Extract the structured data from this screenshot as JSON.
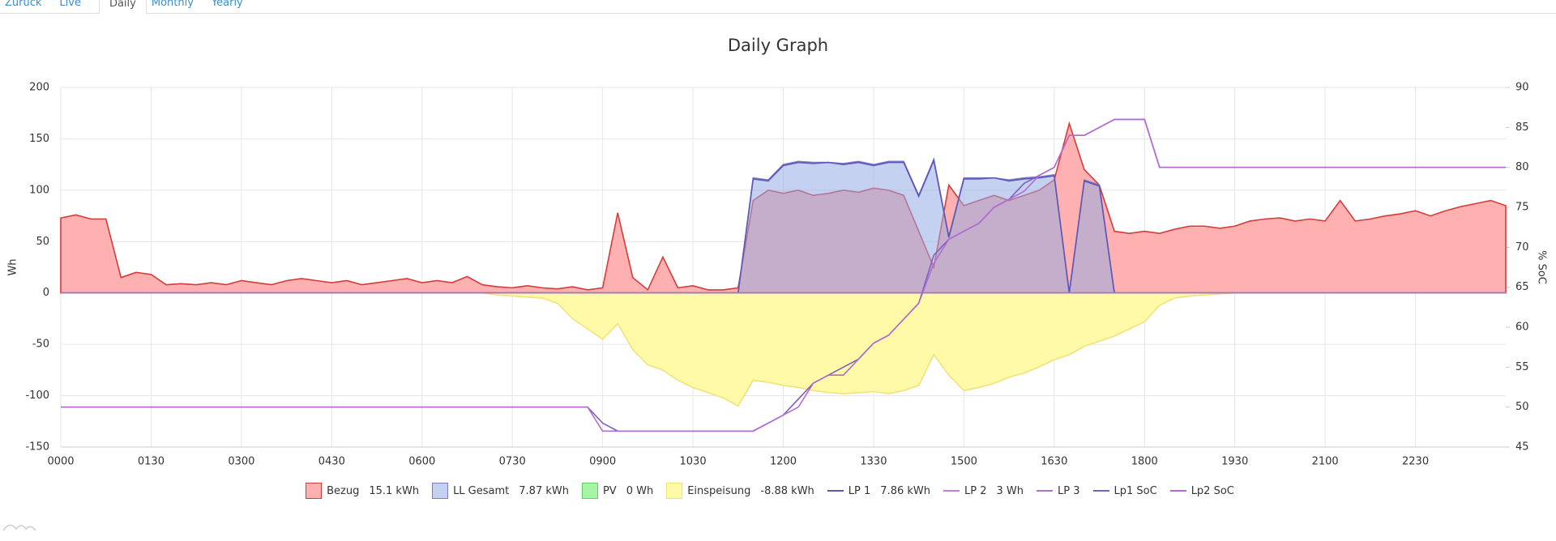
{
  "tabs": [
    "Zurück",
    "Live",
    "Daily",
    "Monthly",
    "Yearly"
  ],
  "chart_data": {
    "type": "line",
    "title": "Daily Graph",
    "y_label": "Wh",
    "y2_label": "% SoC",
    "xlim": [
      0,
      1440
    ],
    "xticks": [
      {
        "value": 0,
        "label": "0000"
      },
      {
        "value": 90,
        "label": "0130"
      },
      {
        "value": 180,
        "label": "0300"
      },
      {
        "value": 270,
        "label": "0430"
      },
      {
        "value": 360,
        "label": "0600"
      },
      {
        "value": 450,
        "label": "0730"
      },
      {
        "value": 540,
        "label": "0900"
      },
      {
        "value": 630,
        "label": "1030"
      },
      {
        "value": 720,
        "label": "1200"
      },
      {
        "value": 810,
        "label": "1330"
      },
      {
        "value": 900,
        "label": "1500"
      },
      {
        "value": 990,
        "label": "1630"
      },
      {
        "value": 1080,
        "label": "1800"
      },
      {
        "value": 1170,
        "label": "1930"
      },
      {
        "value": 1260,
        "label": "2100"
      },
      {
        "value": 1350,
        "label": "2230"
      }
    ],
    "ylim": [
      -150,
      200
    ],
    "yticks": [
      -150,
      -100,
      -50,
      0,
      50,
      100,
      150,
      200
    ],
    "y2lim": [
      45,
      90
    ],
    "y2ticks": [
      45,
      50,
      55,
      60,
      65,
      70,
      75,
      80,
      85,
      90
    ],
    "grid": true,
    "x": [
      0,
      15,
      30,
      45,
      60,
      75,
      90,
      105,
      120,
      135,
      150,
      165,
      180,
      195,
      210,
      225,
      240,
      255,
      270,
      285,
      300,
      315,
      330,
      345,
      360,
      375,
      390,
      405,
      420,
      435,
      450,
      465,
      480,
      495,
      510,
      525,
      540,
      555,
      570,
      585,
      600,
      615,
      630,
      645,
      660,
      675,
      690,
      705,
      720,
      735,
      750,
      765,
      780,
      795,
      810,
      825,
      840,
      855,
      870,
      885,
      900,
      915,
      930,
      945,
      960,
      975,
      990,
      1005,
      1020,
      1035,
      1050,
      1065,
      1080,
      1095,
      1110,
      1125,
      1140,
      1155,
      1170,
      1185,
      1200,
      1215,
      1230,
      1245,
      1260,
      1275,
      1290,
      1305,
      1320,
      1335,
      1350,
      1365,
      1380,
      1395,
      1410,
      1425,
      1440
    ],
    "series": [
      {
        "name": "Bezug",
        "total": "15.1 kWh",
        "kind": "area",
        "color": "#d63b3b",
        "fill": "#ffb0b0",
        "values": [
          73,
          76,
          72,
          72,
          15,
          20,
          18,
          8,
          9,
          8,
          10,
          8,
          12,
          10,
          8,
          12,
          14,
          12,
          10,
          12,
          8,
          10,
          12,
          14,
          10,
          12,
          10,
          16,
          8,
          6,
          5,
          7,
          5,
          4,
          6,
          3,
          5,
          78,
          15,
          3,
          35,
          5,
          7,
          3,
          3,
          5,
          90,
          100,
          97,
          100,
          95,
          97,
          100,
          98,
          102,
          100,
          95,
          60,
          25,
          105,
          85,
          90,
          95,
          90,
          95,
          100,
          110,
          165,
          120,
          105,
          60,
          58,
          60,
          58,
          62,
          65,
          65,
          63,
          65,
          70,
          72,
          73,
          70,
          72,
          70,
          90,
          70,
          72,
          75,
          77,
          80,
          75,
          80,
          84,
          87,
          90,
          85
        ]
      },
      {
        "name": "LL Gesamt",
        "total": "7.87 kWh",
        "kind": "area",
        "color": "#7f7ac8",
        "fill": "rgba(150,172,228,0.55)",
        "values": [
          0,
          0,
          0,
          0,
          0,
          0,
          0,
          0,
          0,
          0,
          0,
          0,
          0,
          0,
          0,
          0,
          0,
          0,
          0,
          0,
          0,
          0,
          0,
          0,
          0,
          0,
          0,
          0,
          0,
          0,
          0,
          0,
          0,
          0,
          0,
          0,
          0,
          0,
          0,
          0,
          0,
          0,
          0,
          0,
          0,
          0,
          112,
          110,
          125,
          128,
          127,
          127,
          126,
          128,
          125,
          128,
          128,
          95,
          130,
          55,
          112,
          112,
          112,
          110,
          112,
          113,
          115,
          0,
          110,
          105,
          0,
          0,
          0,
          0,
          0,
          0,
          0,
          0,
          0,
          0,
          0,
          0,
          0,
          0,
          0,
          0,
          0,
          0,
          0,
          0,
          0,
          0,
          0,
          0,
          0,
          0,
          0
        ]
      },
      {
        "name": "PV",
        "total": "0 Wh",
        "kind": "area",
        "color": "#5fcf5f",
        "fill": "#a6f5a6",
        "values": [
          0,
          0,
          0,
          0,
          0,
          0,
          0,
          0,
          0,
          0,
          0,
          0,
          0,
          0,
          0,
          0,
          0,
          0,
          0,
          0,
          0,
          0,
          0,
          0,
          0,
          0,
          0,
          0,
          0,
          0,
          0,
          0,
          0,
          0,
          0,
          0,
          0,
          0,
          0,
          0,
          0,
          0,
          0,
          0,
          0,
          0,
          0,
          0,
          0,
          0,
          0,
          0,
          0,
          0,
          0,
          0,
          0,
          0,
          0,
          0,
          0,
          0,
          0,
          0,
          0,
          0,
          0,
          0,
          0,
          0,
          0,
          0,
          0,
          0,
          0,
          0,
          0,
          0,
          0,
          0,
          0,
          0,
          0,
          0,
          0,
          0,
          0,
          0,
          0,
          0,
          0,
          0,
          0,
          0,
          0,
          0,
          0
        ]
      },
      {
        "name": "Einspeisung",
        "total": "-8.88 kWh",
        "kind": "area",
        "color": "#f3e27a",
        "fill": "#fffaa8",
        "values": [
          0,
          0,
          0,
          0,
          0,
          0,
          0,
          0,
          0,
          0,
          0,
          0,
          0,
          0,
          0,
          0,
          0,
          0,
          0,
          0,
          0,
          0,
          0,
          0,
          0,
          0,
          0,
          0,
          0,
          -2,
          -3,
          -4,
          -5,
          -10,
          -25,
          -35,
          -45,
          -30,
          -55,
          -70,
          -75,
          -85,
          -92,
          -97,
          -102,
          -110,
          -85,
          -87,
          -90,
          -92,
          -95,
          -97,
          -98,
          -97,
          -96,
          -98,
          -95,
          -90,
          -60,
          -80,
          -95,
          -92,
          -88,
          -82,
          -78,
          -72,
          -65,
          -60,
          -52,
          -47,
          -42,
          -35,
          -28,
          -12,
          -5,
          -3,
          -2,
          -1,
          0,
          0,
          0,
          0,
          0,
          0,
          0,
          0,
          0,
          0,
          0,
          0,
          0,
          0,
          0,
          0,
          0,
          0,
          0
        ]
      },
      {
        "name": "LP 1",
        "total": "7.86 kWh",
        "kind": "line",
        "color": "#5d58b8",
        "values": [
          0,
          0,
          0,
          0,
          0,
          0,
          0,
          0,
          0,
          0,
          0,
          0,
          0,
          0,
          0,
          0,
          0,
          0,
          0,
          0,
          0,
          0,
          0,
          0,
          0,
          0,
          0,
          0,
          0,
          0,
          0,
          0,
          0,
          0,
          0,
          0,
          0,
          0,
          0,
          0,
          0,
          0,
          0,
          0,
          0,
          0,
          111,
          109,
          124,
          127,
          126,
          127,
          125,
          127,
          124,
          127,
          127,
          94,
          129,
          54,
          111,
          111,
          112,
          109,
          111,
          112,
          114,
          0,
          109,
          104,
          0,
          0,
          0,
          0,
          0,
          0,
          0,
          0,
          0,
          0,
          0,
          0,
          0,
          0,
          0,
          0,
          0,
          0,
          0,
          0,
          0,
          0,
          0,
          0,
          0,
          0,
          0
        ]
      },
      {
        "name": "LP 2",
        "total": "3 Wh",
        "kind": "line",
        "color": "#c47fd6",
        "values": [
          0,
          0,
          0,
          0,
          0,
          0,
          0,
          0,
          0,
          0,
          0,
          0,
          0,
          0,
          0,
          0,
          0,
          0,
          0,
          0,
          0,
          0,
          0,
          0,
          0,
          0,
          0,
          0,
          0,
          0,
          0,
          0,
          0,
          0,
          0,
          0,
          0,
          0,
          0,
          0,
          0,
          0,
          0,
          0,
          0,
          0,
          0,
          0,
          0,
          0,
          0,
          0,
          0,
          0,
          0,
          0,
          0,
          0,
          0,
          0,
          0,
          0,
          0,
          0,
          0,
          0,
          0,
          0,
          0,
          0,
          0,
          0,
          0,
          0,
          0,
          0,
          0,
          0,
          0,
          0,
          0,
          0,
          0,
          0,
          0,
          0,
          0,
          0,
          0,
          0,
          0,
          0,
          0,
          0,
          0,
          0,
          0
        ]
      },
      {
        "name": "LP 3",
        "kind": "line",
        "color": "#a674c9",
        "values": [
          0,
          0,
          0,
          0,
          0,
          0,
          0,
          0,
          0,
          0,
          0,
          0,
          0,
          0,
          0,
          0,
          0,
          0,
          0,
          0,
          0,
          0,
          0,
          0,
          0,
          0,
          0,
          0,
          0,
          0,
          0,
          0,
          0,
          0,
          0,
          0,
          0,
          0,
          0,
          0,
          0,
          0,
          0,
          0,
          0,
          0,
          0,
          0,
          0,
          0,
          0,
          0,
          0,
          0,
          0,
          0,
          0,
          0,
          0,
          0,
          0,
          0,
          0,
          0,
          0,
          0,
          0,
          0,
          0,
          0,
          0,
          0,
          0,
          0,
          0,
          0,
          0,
          0,
          0,
          0,
          0,
          0,
          0,
          0,
          0,
          0,
          0,
          0,
          0,
          0,
          0,
          0,
          0,
          0,
          0,
          0,
          0
        ]
      },
      {
        "name": "Lp1 SoC",
        "kind": "line",
        "axis": "y2",
        "color": "#7a62bb",
        "values": [
          50,
          50,
          50,
          50,
          50,
          50,
          50,
          50,
          50,
          50,
          50,
          50,
          50,
          50,
          50,
          50,
          50,
          50,
          50,
          50,
          50,
          50,
          50,
          50,
          50,
          50,
          50,
          50,
          50,
          50,
          50,
          50,
          50,
          50,
          50,
          50,
          48,
          47,
          47,
          47,
          47,
          47,
          47,
          47,
          47,
          47,
          47,
          48,
          49,
          51,
          53,
          54,
          55,
          56,
          58,
          59,
          61,
          63,
          69,
          71,
          72,
          73,
          75,
          76,
          78,
          79,
          80,
          84,
          84,
          85,
          86,
          86,
          86,
          80,
          80,
          80,
          80,
          80,
          80,
          80,
          80,
          80,
          80,
          80,
          80,
          80,
          80,
          80,
          80,
          80,
          80,
          80,
          80,
          80,
          80,
          80,
          80
        ]
      },
      {
        "name": "Lp2 SoC",
        "kind": "line",
        "axis": "y2",
        "color": "#b46cd3",
        "values": [
          50,
          50,
          50,
          50,
          50,
          50,
          50,
          50,
          50,
          50,
          50,
          50,
          50,
          50,
          50,
          50,
          50,
          50,
          50,
          50,
          50,
          50,
          50,
          50,
          50,
          50,
          50,
          50,
          50,
          50,
          50,
          50,
          50,
          50,
          50,
          50,
          47,
          47,
          47,
          47,
          47,
          47,
          47,
          47,
          47,
          47,
          47,
          48,
          49,
          50,
          53,
          54,
          54,
          56,
          58,
          59,
          61,
          63,
          68,
          71,
          72,
          73,
          75,
          76,
          77,
          79,
          80,
          84,
          84,
          85,
          86,
          86,
          86,
          80,
          80,
          80,
          80,
          80,
          80,
          80,
          80,
          80,
          80,
          80,
          80,
          80,
          80,
          80,
          80,
          80,
          80,
          80,
          80,
          80,
          80,
          80,
          80
        ]
      }
    ]
  }
}
